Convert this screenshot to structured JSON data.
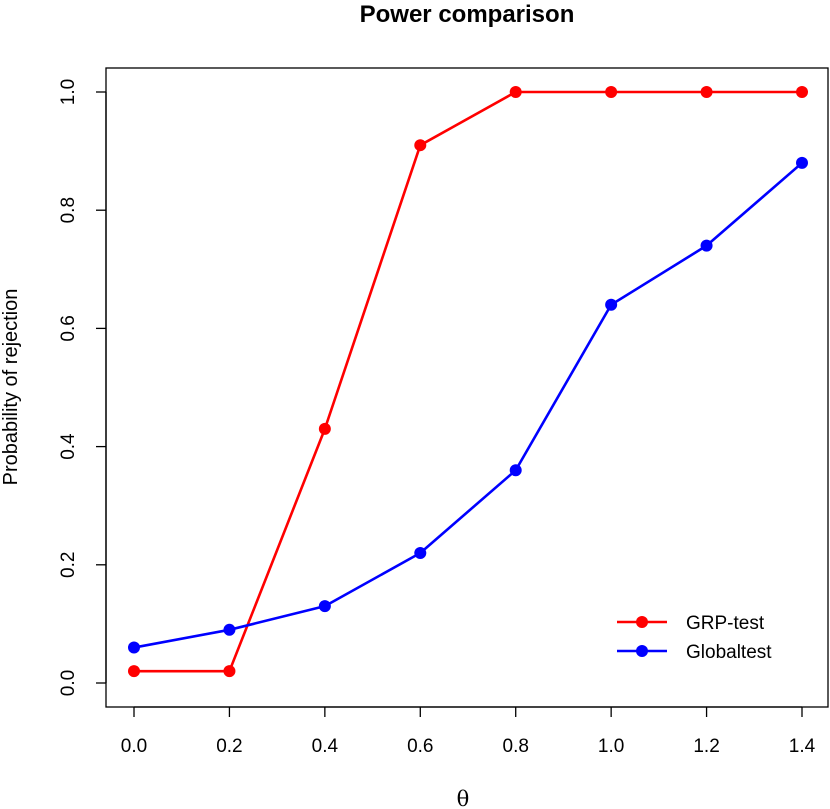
{
  "chart_data": {
    "type": "line",
    "title": "Power comparison",
    "xlabel": "θ",
    "ylabel": "Probability of rejection",
    "xlim": [
      0.0,
      1.4
    ],
    "ylim": [
      0.0,
      1.0
    ],
    "x": [
      0.0,
      0.2,
      0.4,
      0.6,
      0.8,
      1.0,
      1.2,
      1.4
    ],
    "xticks": [
      "0.0",
      "0.2",
      "0.4",
      "0.6",
      "0.8",
      "1.0",
      "1.2",
      "1.4"
    ],
    "yticks": [
      "0.0",
      "0.2",
      "0.4",
      "0.6",
      "0.8",
      "1.0"
    ],
    "grid": false,
    "legend_position": "bottom-right",
    "series": [
      {
        "name": "GRP-test",
        "color": "#ff0000",
        "values": [
          0.02,
          0.02,
          0.43,
          0.91,
          1.0,
          1.0,
          1.0,
          1.0
        ]
      },
      {
        "name": "Globaltest",
        "color": "#0000ff",
        "values": [
          0.06,
          0.09,
          0.13,
          0.22,
          0.36,
          0.64,
          0.74,
          0.88
        ]
      }
    ]
  }
}
